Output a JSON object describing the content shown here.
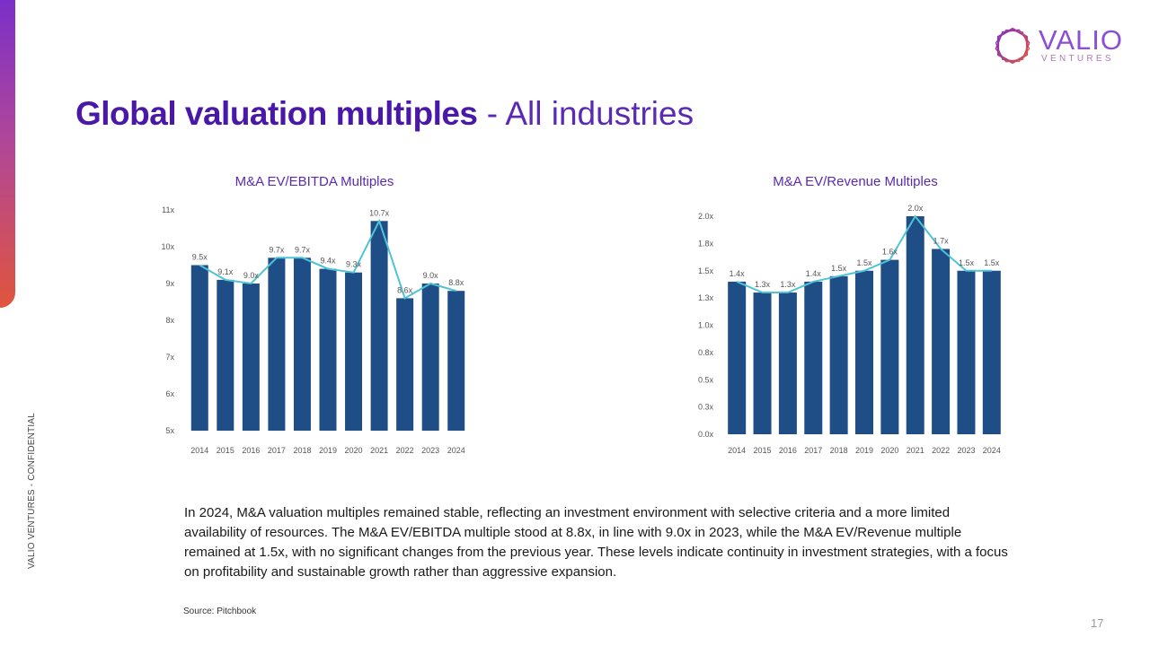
{
  "sidebar": {
    "confidential_label": "VALIO VENTURES - CONFIDENTIAL"
  },
  "logo": {
    "word": "VALIO",
    "sub": "VENTURES",
    "icon": "hexagon-logo-icon"
  },
  "header": {
    "title_bold": "Global valuation multiples",
    "title_light": " - All industries"
  },
  "colors": {
    "bar": "#1f4e87",
    "line": "#4fc3d6",
    "title": "#4a18a8"
  },
  "chart_data": [
    {
      "type": "bar",
      "title": "M&A EV/EBITDA Multiples",
      "categories": [
        "2014",
        "2015",
        "2016",
        "2017",
        "2018",
        "2019",
        "2020",
        "2021",
        "2022",
        "2023",
        "2024"
      ],
      "values": [
        9.5,
        9.1,
        9.0,
        9.7,
        9.7,
        9.4,
        9.3,
        10.7,
        8.6,
        9.0,
        8.8
      ],
      "value_labels": [
        "9.5x",
        "9.1x",
        "9.0x",
        "9.7x",
        "9.7x",
        "9.4x",
        "9.3x",
        "10.7x",
        "8.6x",
        "9.0x",
        "8.8x"
      ],
      "overlay_line": true,
      "y_ticks": [
        "5x",
        "6x",
        "7x",
        "8x",
        "9x",
        "10x",
        "11x"
      ],
      "ylim": [
        5,
        11
      ]
    },
    {
      "type": "bar",
      "title": "M&A EV/Revenue Multiples",
      "categories": [
        "2014",
        "2015",
        "2016",
        "2017",
        "2018",
        "2019",
        "2020",
        "2021",
        "2022",
        "2023",
        "2024"
      ],
      "values": [
        1.4,
        1.3,
        1.3,
        1.4,
        1.45,
        1.5,
        1.6,
        2.0,
        1.7,
        1.5,
        1.5
      ],
      "value_labels": [
        "1.4x",
        "1.3x",
        "1.3x",
        "1.4x",
        "1.5x",
        "1.5x",
        "1.6x",
        "2.0x",
        "1.7x",
        "1.5x",
        "1.5x"
      ],
      "overlay_line": true,
      "y_ticks": [
        "0.0x",
        "0.3x",
        "0.5x",
        "0.8x",
        "1.0x",
        "1.3x",
        "1.5x",
        "1.8x",
        "2.0x"
      ],
      "ylim": [
        0,
        2.0
      ]
    }
  ],
  "body": {
    "paragraph": "In 2024, M&A valuation multiples remained stable, reflecting an investment environment with selective criteria and a more limited availability of resources. The M&A EV/EBITDA multiple stood at 8.8x, in line with 9.0x in 2023, while the M&A EV/Revenue multiple remained at 1.5x, with no significant changes from the previous year. These levels indicate continuity in investment strategies, with a focus on profitability and sustainable growth rather than aggressive expansion.",
    "source": "Source: Pitchbook",
    "page_number": "17"
  }
}
